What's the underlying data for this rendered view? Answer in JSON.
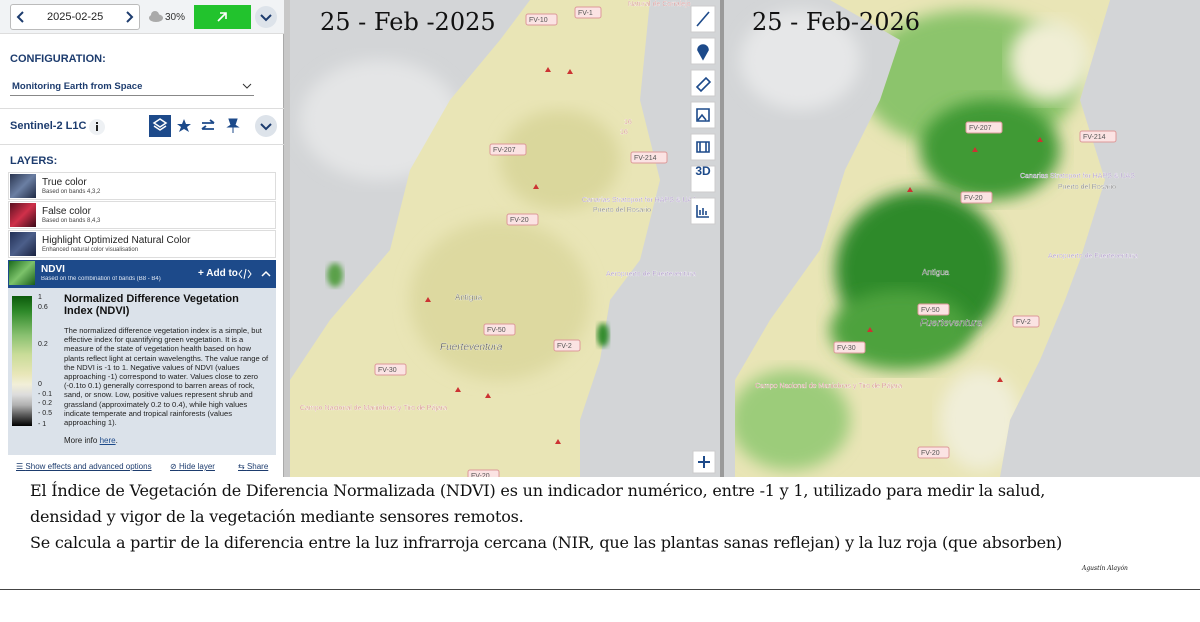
{
  "toolbar": {
    "date": "2025-02-25",
    "cloud": "30%"
  },
  "configuration": {
    "heading": "CONFIGURATION:",
    "selected": "Monitoring Earth from Space"
  },
  "dataset": "Sentinel-2 L1C",
  "layers": {
    "heading": "LAYERS:",
    "items": [
      {
        "name": "True color",
        "description": "Based on bands 4,3,2"
      },
      {
        "name": "False color",
        "description": "Based on bands 8,4,3"
      },
      {
        "name": "Highlight Optimized Natural Color",
        "description": "Enhanced natural color visualisation"
      }
    ],
    "active": {
      "name": "NDVI",
      "description": "Based on the combination of bands (B8 - B4)/(...",
      "add": "Add to",
      "title": "Normalized Difference Vegetation Index (NDVI)",
      "text": "The normalized difference vegetation index is a simple, but effective index for quantifying green vegetation. It is a measure of the state of vegetation health based on how plants reflect light at certain wavelengths. The value range of the NDVI is -1 to 1. Negative values of NDVI (values approaching -1) correspond to water. Values close to zero (-0.1to 0.1) generally correspond to barren areas of rock, sand, or snow. Low, positive values represent shrub and grassland (approximately 0.2 to 0.4), while high values indicate temperate and tropical rainforests (values approaching 1).",
      "more_prefix": "More info ",
      "more_link": "here",
      "more_suffix": ".",
      "legend": [
        "1",
        "0.6",
        "0.2",
        "0",
        "- 0.1",
        "- 0.2",
        "- 0.5",
        "- 1"
      ]
    }
  },
  "footer_links": [
    "Show effects and advanced options",
    "Hide layer",
    "Share"
  ],
  "map_tools": {
    "three_d": "3D"
  },
  "maps": [
    {
      "title": "25 - Feb -2025",
      "labels": [
        "FV-10",
        "FV-1",
        "Natural de Corralejo",
        "16",
        "16",
        "FV-207",
        "FV-214",
        "Canarias Stratoport for HAPS & UAS",
        "Puerto del Rosario",
        "FV-20",
        "Aeropuerto de Fuerteventura",
        "Antigua",
        "FV-50",
        "Fuerteventura",
        "FV-2",
        "FV-30",
        "Campo Nacional de Maniobras y Tiro de Pájara",
        "FV-20"
      ]
    },
    {
      "title": "25 - Feb-2026",
      "labels": [
        "FV-207",
        "FV-214",
        "Canarias Stratoport for HAPS & UAS",
        "Puerto del Rosario",
        "FV-20",
        "Aeropuerto de Fuerteventura",
        "Antigua",
        "FV-50",
        "Fuerteventura",
        "FV-2",
        "FV-30",
        "Campo Nacional de Maniobras y Tiro de Pájara",
        "FV-20"
      ]
    }
  ],
  "caption": {
    "lines": [
      "El Índice de Vegetación de Diferencia Normalizada (NDVI) es un indicador numérico, entre -1 y 1, utilizado para medir la salud,",
      "densidad y vigor de la vegetación mediante sensores remotos.",
      "Se calcula a partir de la diferencia entre la luz infrarroja cercana (NIR, que las plantas sanas reflejan) y la luz roja (que absorben)"
    ],
    "signature": "Agustín Alayón"
  }
}
